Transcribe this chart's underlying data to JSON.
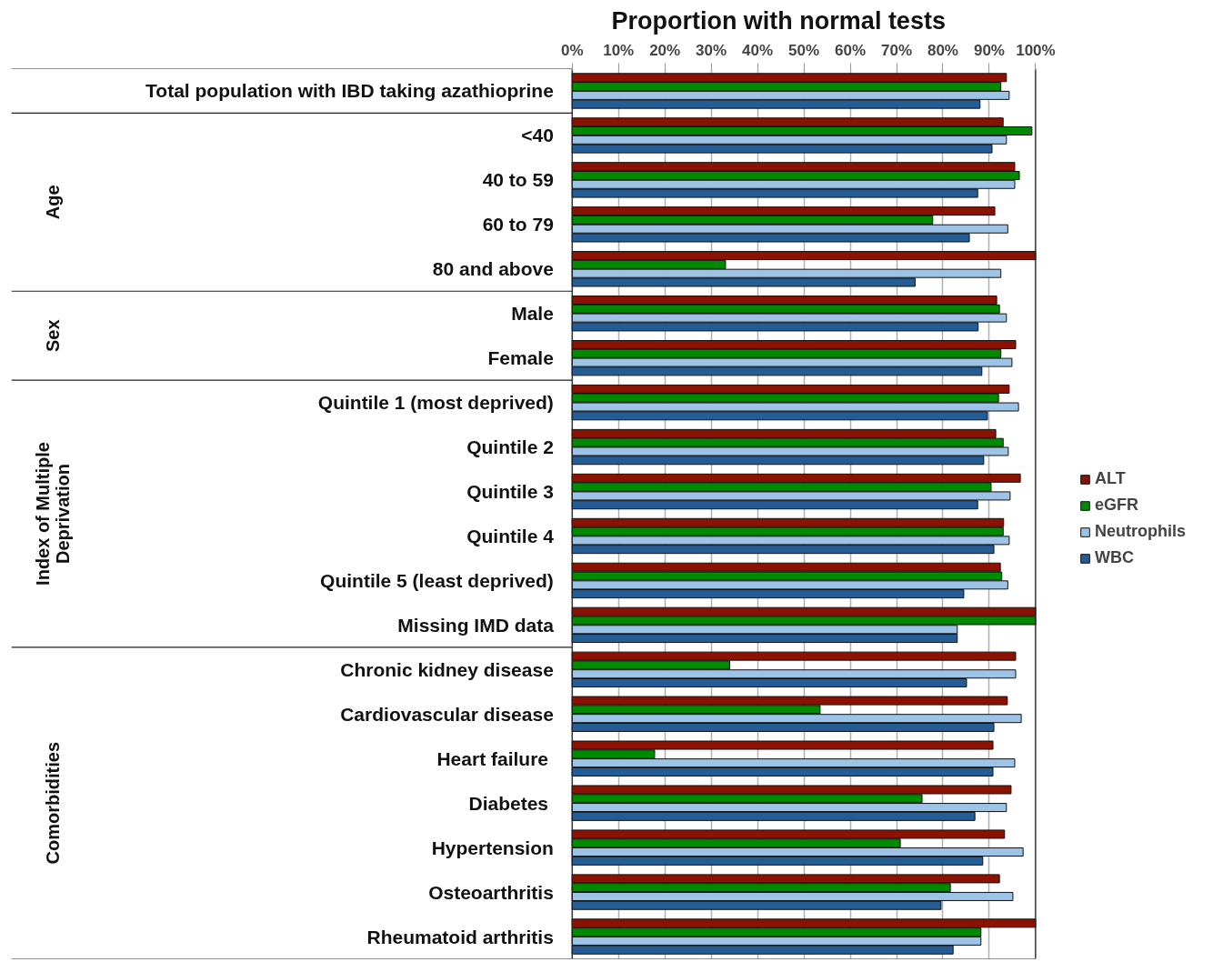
{
  "chart_data": {
    "type": "bar",
    "orientation": "horizontal",
    "xlabel": "Proportion with normal tests",
    "categories": [
      "Total population with IBD taking azathioprine",
      "<40",
      "40 to 59",
      "60 to 79",
      "80 and above",
      "Male",
      "Female",
      "Quintile 1 (most deprived)",
      "Quintile 2",
      "Quintile 3",
      "Quintile 4",
      "Quintile 5 (least deprived)",
      "Missing IMD data",
      "Chronic kidney disease",
      "Cardiovascular disease",
      "Heart failure ",
      "Diabetes ",
      "Hypertension",
      "Osteoarthritis",
      "Rheumatoid arthritis"
    ],
    "series": [
      {
        "name": "ALT",
        "color": "#8b1100",
        "values": [
          93.7,
          93,
          95.5,
          91.2,
          100,
          91.6,
          95.7,
          94.3,
          91.4,
          96.7,
          93.1,
          92.4,
          100,
          95.7,
          93.9,
          90.8,
          94.7,
          93.3,
          92.2,
          100
        ]
      },
      {
        "name": "eGFR",
        "color": "#008a00",
        "values": [
          92.5,
          99.2,
          96.5,
          77.8,
          33.1,
          92.2,
          92.5,
          92,
          93,
          90.4,
          93,
          92.7,
          100,
          34,
          53.5,
          17.8,
          75.5,
          70.8,
          81.6,
          88.2
        ]
      },
      {
        "name": "Neutrophils",
        "color": "#9dc3e6",
        "values": [
          94.3,
          93.7,
          95.5,
          94,
          92.5,
          93.7,
          94.9,
          96.3,
          94.1,
          94.5,
          94.3,
          94,
          83.1,
          95.7,
          96.9,
          95.5,
          93.7,
          97.3,
          95.1,
          88.2
        ]
      },
      {
        "name": "WBC",
        "color": "#245c96",
        "values": [
          88,
          90.6,
          87.5,
          85.7,
          74,
          87.6,
          88.4,
          89.6,
          88.8,
          87.5,
          91,
          84.5,
          83.1,
          85.1,
          91,
          90.8,
          86.9,
          88.6,
          79.6,
          82.2
        ]
      }
    ],
    "xlim": [
      0,
      100
    ],
    "xticks": [
      {
        "value": 0,
        "label": "0%"
      },
      {
        "value": 10,
        "label": "10%"
      },
      {
        "value": 20,
        "label": "20%"
      },
      {
        "value": 30,
        "label": "30%"
      },
      {
        "value": 40,
        "label": "40%"
      },
      {
        "value": 50,
        "label": "50%"
      },
      {
        "value": 60,
        "label": "60%"
      },
      {
        "value": 70,
        "label": "70%"
      },
      {
        "value": 80,
        "label": "80%"
      },
      {
        "value": 90,
        "label": "90%"
      },
      {
        "value": 100,
        "label": "100%"
      }
    ],
    "grid": "x",
    "legend": "right",
    "annotations": [
      "Age",
      "Sex",
      "Index of Multiple\nDeprivation",
      "Comorbidities"
    ]
  }
}
